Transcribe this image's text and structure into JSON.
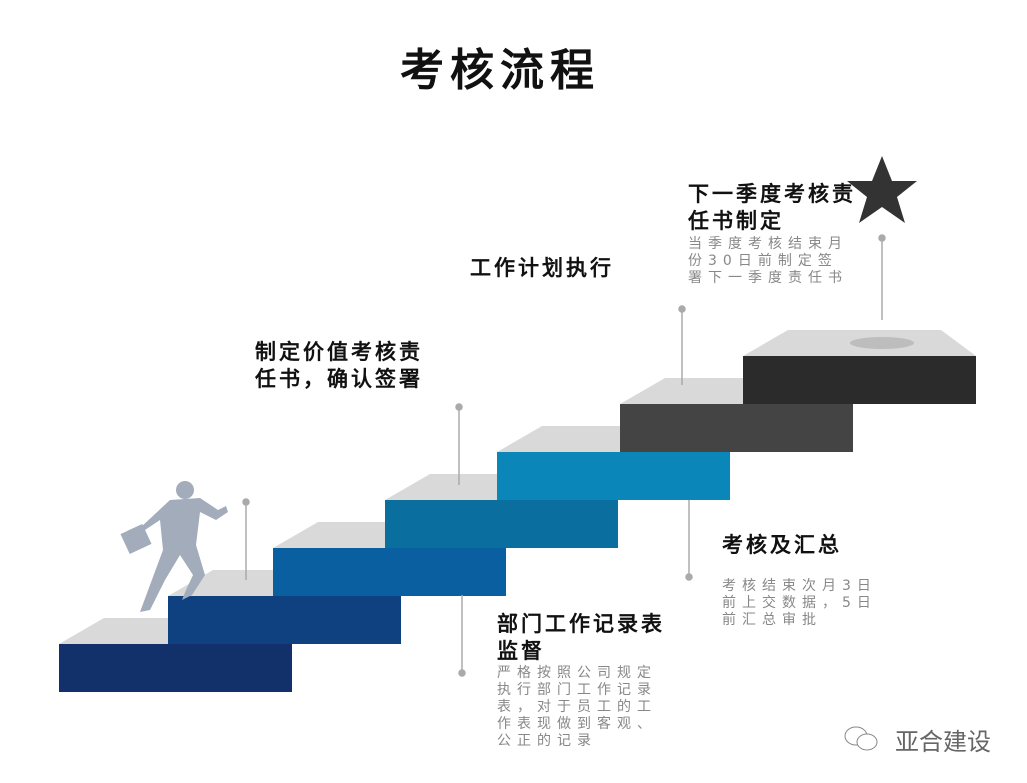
{
  "title": "考核流程",
  "steps": [
    {
      "heading": "制定价值考核责任书，确认签署",
      "color": "#12306a"
    },
    {
      "heading": "部门工作记录表监督",
      "description": "严格按照公司规定执行部门工作记录表，对于员工的工作表现做到客观、公正的记录",
      "color": "#0f4080"
    },
    {
      "heading": "工作计划执行",
      "color": "#0a5fa0"
    },
    {
      "heading": "考核及汇总",
      "description": "考核结束次月3日前上交数据，5日前汇总审批",
      "color": "#0a6f9f"
    },
    {
      "heading": "下一季度考核责任书制定",
      "description": "当季度考核结束月份30日前制定签署下一季度责任书",
      "color": "#0a86b8"
    }
  ],
  "step_colors": [
    "#12306a",
    "#0f4080",
    "#0a5fa0",
    "#0a6f9f",
    "#0a86b8",
    "#444444",
    "#2b2b2b"
  ],
  "top_color": "#d9d9d9",
  "watermark": "亚合建设",
  "icons": [
    "runner-silhouette",
    "star-icon",
    "wechat-icon"
  ]
}
